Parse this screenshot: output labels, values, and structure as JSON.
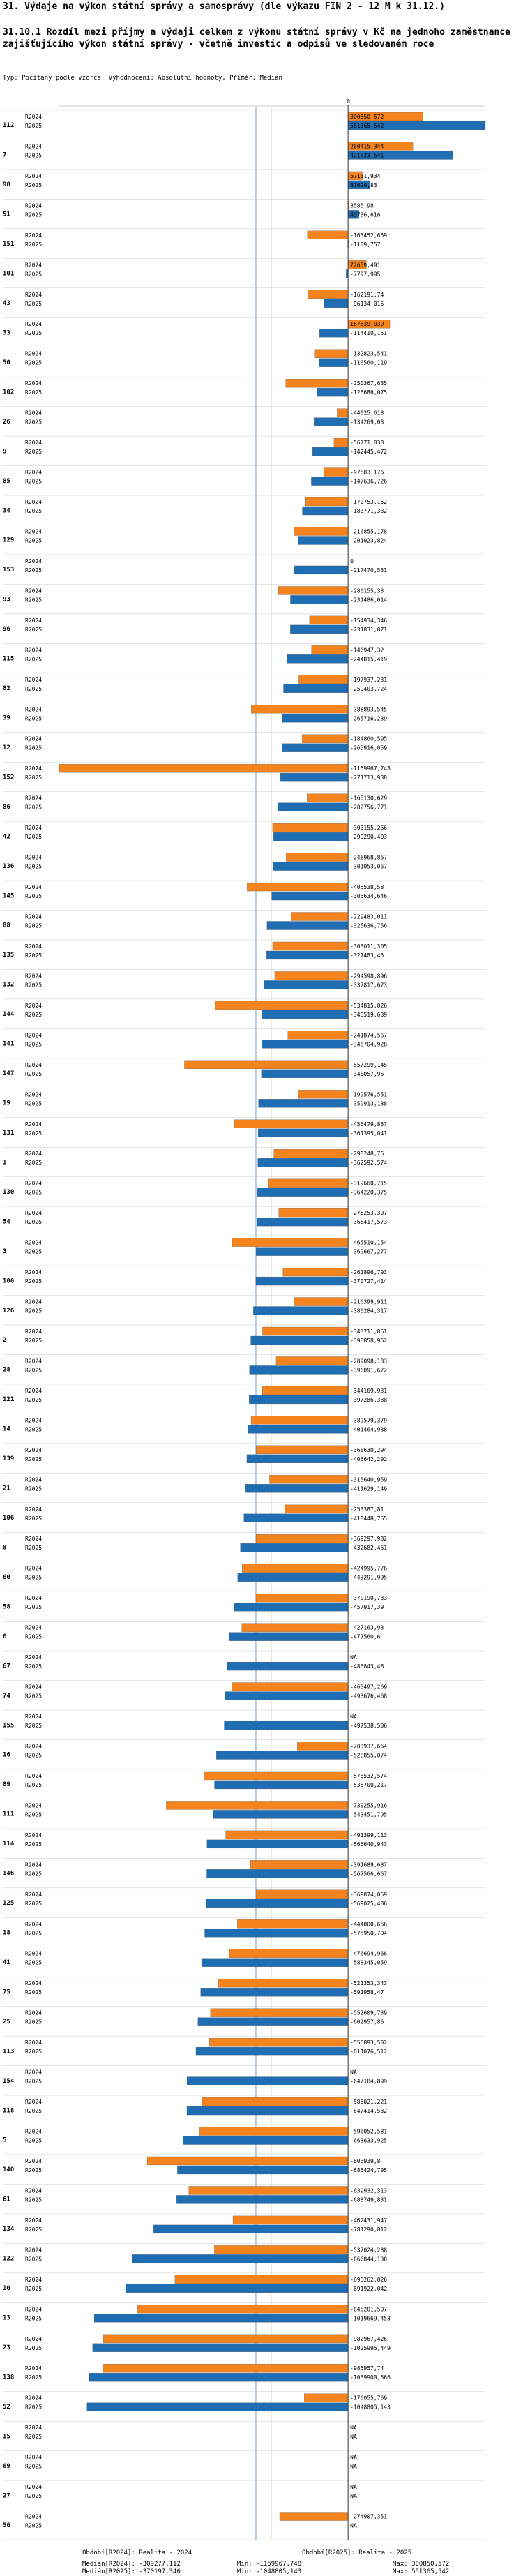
{
  "title": "31. Výdaje na výkon státní správy a samosprávy (dle výkazu FIN 2 - 12 M k 31.12.)",
  "subtitle": "31.10.1 Rozdíl mezi příjmy a výdaji celkem z výkonu státní správy v Kč na jednoho zaměstnance zajišťujícího výkon státní správy - včetně investic a odpisů ve sledovaném roce",
  "params": "Typ: Počítaný podle vzorce, Vyhodnocení: Absolutní hodnoty, Příměr: Medián",
  "footer": {
    "legend_2024": "Období[R2024]: Realita - 2024",
    "legend_2025": "Období[R2025]: Realita - 2025",
    "median_2024": "Medián[R2024]: -309277,112",
    "median_2025": "Medián[R2025]: -370197,346",
    "min": "Min: -1159967,748",
    "min2": "Min: -1048805,143",
    "max": "Max: 300850,572",
    "max2": "Max: 551365,542"
  },
  "colors": {
    "r2024": "#f5841f",
    "r2025": "#1f6db3",
    "median2024": "#f5841f",
    "median2025": "#6f9fd0",
    "zero": "#333333",
    "grid": "#cccccc"
  },
  "chart_data": {
    "type": "bar",
    "orientation": "horizontal",
    "xlim": [
      -1159967.748,
      551365.542
    ],
    "medians": {
      "R2024": -309277.112,
      "R2025": -370197.346
    },
    "series_names": [
      "R2024",
      "R2025"
    ],
    "rows": [
      {
        "id": "112",
        "r2024": 300850.572,
        "r2025": 551365.542,
        "l2024": "300850,572",
        "l2025": "551365,542"
      },
      {
        "id": "7",
        "r2024": 260415.344,
        "r2025": 421523.541,
        "l2024": "260415,344",
        "l2025": "421523,541"
      },
      {
        "id": "98",
        "r2024": 57131.934,
        "r2025": 87690.83,
        "l2024": "57131,934",
        "l2025": "87690,83"
      },
      {
        "id": "51",
        "r2024": 3585.98,
        "r2025": 43736.616,
        "l2024": "3585,98",
        "l2025": "43736,616"
      },
      {
        "id": "151",
        "r2024": -163452.659,
        "r2025": -1109.757,
        "l2024": "-163452,659",
        "l2025": "-1109,757"
      },
      {
        "id": "101",
        "r2024": 72659.491,
        "r2025": -7797.995,
        "l2024": "72659,491",
        "l2025": "-7797,995"
      },
      {
        "id": "43",
        "r2024": -162191.74,
        "r2025": -96134.015,
        "l2024": "-162191,74",
        "l2025": "-96134,015"
      },
      {
        "id": "33",
        "r2024": 167839.039,
        "r2025": -114410.151,
        "l2024": "167839,039",
        "l2025": "-114410,151"
      },
      {
        "id": "50",
        "r2024": -132823.541,
        "r2025": -116560.119,
        "l2024": "-132823,541",
        "l2025": "-116560,119"
      },
      {
        "id": "102",
        "r2024": -250367.635,
        "r2025": -125686.075,
        "l2024": "-250367,635",
        "l2025": "-125686,075"
      },
      {
        "id": "26",
        "r2024": -44025.618,
        "r2025": -134269.03,
        "l2024": "-44025,618",
        "l2025": "-134269,03"
      },
      {
        "id": "9",
        "r2024": -56771.038,
        "r2025": -142445.472,
        "l2024": "-56771,038",
        "l2025": "-142445,472"
      },
      {
        "id": "85",
        "r2024": -97583.176,
        "r2025": -147636.726,
        "l2024": "-97583,176",
        "l2025": "-147636,726"
      },
      {
        "id": "34",
        "r2024": -170753.152,
        "r2025": -183771.332,
        "l2024": "-170753,152",
        "l2025": "-183771,332"
      },
      {
        "id": "129",
        "r2024": -216855.178,
        "r2025": -201023.824,
        "l2024": "-216855,178",
        "l2025": "-201023,824"
      },
      {
        "id": "153",
        "r2024": 0,
        "r2025": -217470.531,
        "l2024": "0",
        "l2025": "-217470,531"
      },
      {
        "id": "93",
        "r2024": -280155.33,
        "r2025": -231486.014,
        "l2024": "-280155,33",
        "l2025": "-231486,014"
      },
      {
        "id": "96",
        "r2024": -154934.346,
        "r2025": -231831.071,
        "l2024": "-154934,346",
        "l2025": "-231831,071"
      },
      {
        "id": "115",
        "r2024": -146947.32,
        "r2025": -244815.419,
        "l2024": "-146947,32",
        "l2025": "-244815,419"
      },
      {
        "id": "82",
        "r2024": -197937.231,
        "r2025": -259403.724,
        "l2024": "-197937,231",
        "l2025": "-259403,724"
      },
      {
        "id": "39",
        "r2024": -388893.545,
        "r2025": -265716.239,
        "l2024": "-388893,545",
        "l2025": "-265716,239"
      },
      {
        "id": "12",
        "r2024": -184860.595,
        "r2025": -265916.059,
        "l2024": "-184860,595",
        "l2025": "-265916,059"
      },
      {
        "id": "152",
        "r2024": -1159967.748,
        "r2025": -271713.938,
        "l2024": "-1159967,748",
        "l2025": "-271713,938"
      },
      {
        "id": "86",
        "r2024": -165130.629,
        "r2025": -282756.771,
        "l2024": "-165130,629",
        "l2025": "-282756,771"
      },
      {
        "id": "42",
        "r2024": -303155.266,
        "r2025": -299290.403,
        "l2024": "-303155,266",
        "l2025": "-299290,403"
      },
      {
        "id": "136",
        "r2024": -248968.867,
        "r2025": -301053.067,
        "l2024": "-248968,867",
        "l2025": "-301053,067"
      },
      {
        "id": "145",
        "r2024": -405538.58,
        "r2025": -306634.646,
        "l2024": "-405538,58",
        "l2025": "-306634,646"
      },
      {
        "id": "88",
        "r2024": -229483.011,
        "r2025": -325636.756,
        "l2024": "-229483,011",
        "l2025": "-325636,756"
      },
      {
        "id": "135",
        "r2024": -303011.305,
        "r2025": -327483.45,
        "l2024": "-303011,305",
        "l2025": "-327483,45"
      },
      {
        "id": "132",
        "r2024": -294598.896,
        "r2025": -337817.673,
        "l2024": "-294598,896",
        "l2025": "-337817,673"
      },
      {
        "id": "144",
        "r2024": -534815.026,
        "r2025": -345519.639,
        "l2024": "-534815,026",
        "l2025": "-345519,639"
      },
      {
        "id": "141",
        "r2024": -241874.567,
        "r2025": -346704.928,
        "l2024": "-241874,567",
        "l2025": "-346704,928"
      },
      {
        "id": "147",
        "r2024": -657299.145,
        "r2025": -348057.96,
        "l2024": "-657299,145",
        "l2025": "-348057,96"
      },
      {
        "id": "19",
        "r2024": -199576.551,
        "r2025": -359913.138,
        "l2024": "-199576,551",
        "l2025": "-359913,138"
      },
      {
        "id": "131",
        "r2024": -456479.837,
        "r2025": -361395.041,
        "l2024": "-456479,837",
        "l2025": "-361395,041"
      },
      {
        "id": "1",
        "r2024": -298248.76,
        "r2025": -362592.574,
        "l2024": "-298248,76",
        "l2025": "-362592,574"
      },
      {
        "id": "130",
        "r2024": -319660.715,
        "r2025": -364220.375,
        "l2024": "-319660,715",
        "l2025": "-364220,375"
      },
      {
        "id": "54",
        "r2024": -278253.307,
        "r2025": -366417.573,
        "l2024": "-278253,307",
        "l2025": "-366417,573"
      },
      {
        "id": "3",
        "r2024": -465510.154,
        "r2025": -369667.277,
        "l2024": "-465510,154",
        "l2025": "-369667,277"
      },
      {
        "id": "100",
        "r2024": -261896.793,
        "r2025": -370727.414,
        "l2024": "-261896,793",
        "l2025": "-370727,414"
      },
      {
        "id": "126",
        "r2024": -216399.911,
        "r2025": -380284.317,
        "l2024": "-216399,911",
        "l2025": "-380284,317"
      },
      {
        "id": "2",
        "r2024": -343711.861,
        "r2025": -390858.962,
        "l2024": "-343711,861",
        "l2025": "-390858,962"
      },
      {
        "id": "28",
        "r2024": -289098.183,
        "r2025": -396091.672,
        "l2024": "-289098,183",
        "l2025": "-396091,672"
      },
      {
        "id": "121",
        "r2024": -344109.931,
        "r2025": -397286.388,
        "l2024": "-344109,931",
        "l2025": "-397286,388"
      },
      {
        "id": "14",
        "r2024": -389579.379,
        "r2025": -401464.938,
        "l2024": "-389579,379",
        "l2025": "-401464,938"
      },
      {
        "id": "139",
        "r2024": -368630.294,
        "r2025": -406642.292,
        "l2024": "-368630,294",
        "l2025": "-406642,292"
      },
      {
        "id": "21",
        "r2024": -315640.959,
        "r2025": -411629.149,
        "l2024": "-315640,959",
        "l2025": "-411629,149"
      },
      {
        "id": "106",
        "r2024": -253387.81,
        "r2025": -418448.765,
        "l2024": "-253387,81",
        "l2025": "-418448,765"
      },
      {
        "id": "8",
        "r2024": -369297.982,
        "r2025": -432682.461,
        "l2024": "-369297,982",
        "l2025": "-432682,461"
      },
      {
        "id": "60",
        "r2024": -424995.776,
        "r2025": -443291.995,
        "l2024": "-424995,776",
        "l2025": "-443291,995"
      },
      {
        "id": "58",
        "r2024": -370190.733,
        "r2025": -457917.39,
        "l2024": "-370190,733",
        "l2025": "-457917,39"
      },
      {
        "id": "6",
        "r2024": -427163.93,
        "r2025": -477560.6,
        "l2024": "-427163,93",
        "l2025": "-477560,6"
      },
      {
        "id": "67",
        "r2024": null,
        "r2025": -486843.48,
        "l2024": "NA",
        "l2025": "-486843,48"
      },
      {
        "id": "74",
        "r2024": -465497.269,
        "r2025": -493676.468,
        "l2024": "-465497,269",
        "l2025": "-493676,468"
      },
      {
        "id": "155",
        "r2024": null,
        "r2025": -497538.506,
        "l2024": "NA",
        "l2025": "-497538,506"
      },
      {
        "id": "16",
        "r2024": -203937.664,
        "r2025": -528855.074,
        "l2024": "-203937,664",
        "l2025": "-528855,074"
      },
      {
        "id": "89",
        "r2024": -578532.574,
        "r2025": -536700.217,
        "l2024": "-578532,574",
        "l2025": "-536700,217"
      },
      {
        "id": "111",
        "r2024": -730255.916,
        "r2025": -543451.795,
        "l2024": "-730255,916",
        "l2025": "-543451,795"
      },
      {
        "id": "114",
        "r2024": -491399.113,
        "r2025": -566640.943,
        "l2024": "-491399,113",
        "l2025": "-566640,943"
      },
      {
        "id": "146",
        "r2024": -391689.687,
        "r2025": -567566.667,
        "l2024": "-391689,687",
        "l2025": "-567566,667"
      },
      {
        "id": "125",
        "r2024": -369874.059,
        "r2025": -569025.406,
        "l2024": "-369874,059",
        "l2025": "-569025,406"
      },
      {
        "id": "18",
        "r2024": -444800.666,
        "r2025": -575950.704,
        "l2024": "-444800,666",
        "l2025": "-575950,704"
      },
      {
        "id": "41",
        "r2024": -476694.966,
        "r2025": -588345.059,
        "l2024": "-476694,966",
        "l2025": "-588345,059"
      },
      {
        "id": "75",
        "r2024": -521353.343,
        "r2025": -591958.47,
        "l2024": "-521353,343",
        "l2025": "-591958,47"
      },
      {
        "id": "25",
        "r2024": -552609.739,
        "r2025": -602957.86,
        "l2024": "-552609,739",
        "l2025": "-602957,86"
      },
      {
        "id": "113",
        "r2024": -556893.502,
        "r2025": -611076.512,
        "l2024": "-556893,502",
        "l2025": "-611076,512"
      },
      {
        "id": "154",
        "r2024": null,
        "r2025": -647184.899,
        "l2024": "NA",
        "l2025": "-647184,899"
      },
      {
        "id": "118",
        "r2024": -586021.221,
        "r2025": -647414.532,
        "l2024": "-586021,221",
        "l2025": "-647414,532"
      },
      {
        "id": "5",
        "r2024": -596052.581,
        "r2025": -663633.925,
        "l2024": "-596052,581",
        "l2025": "-663633,925"
      },
      {
        "id": "140",
        "r2024": -806939.8,
        "r2025": -685424.795,
        "l2024": "-806939,8",
        "l2025": "-685424,795"
      },
      {
        "id": "61",
        "r2024": -639932.313,
        "r2025": -688749.831,
        "l2024": "-639932,313",
        "l2025": "-688749,831"
      },
      {
        "id": "134",
        "r2024": -462431.947,
        "r2025": -781290.812,
        "l2024": "-462431,947",
        "l2025": "-781290,812"
      },
      {
        "id": "122",
        "r2024": -537024.288,
        "r2025": -866844.138,
        "l2024": "-537024,288",
        "l2025": "-866844,138"
      },
      {
        "id": "10",
        "r2024": -695262.026,
        "r2025": -891922.042,
        "l2024": "-695262,026",
        "l2025": "-891922,042"
      },
      {
        "id": "13",
        "r2024": -845201.507,
        "r2025": -1019669.453,
        "l2024": "-845201,507",
        "l2025": "-1019669,453"
      },
      {
        "id": "23",
        "r2024": -982967.426,
        "r2025": -1025995.449,
        "l2024": "-982967,426",
        "l2025": "-1025995,449"
      },
      {
        "id": "138",
        "r2024": -985957.74,
        "r2025": -1039900.566,
        "l2024": "-985957,74",
        "l2025": "-1039900,566"
      },
      {
        "id": "52",
        "r2024": -176055.769,
        "r2025": -1048805.143,
        "l2024": "-176055,769",
        "l2025": "-1048805,143"
      },
      {
        "id": "15",
        "r2024": null,
        "r2025": null,
        "l2024": "NA",
        "l2025": "NA"
      },
      {
        "id": "69",
        "r2024": null,
        "r2025": null,
        "l2024": "NA",
        "l2025": "NA"
      },
      {
        "id": "27",
        "r2024": null,
        "r2025": null,
        "l2024": "NA",
        "l2025": "NA"
      },
      {
        "id": "56",
        "r2024": -274907.351,
        "r2025": null,
        "l2024": "-274907,351",
        "l2025": "NA"
      }
    ]
  }
}
